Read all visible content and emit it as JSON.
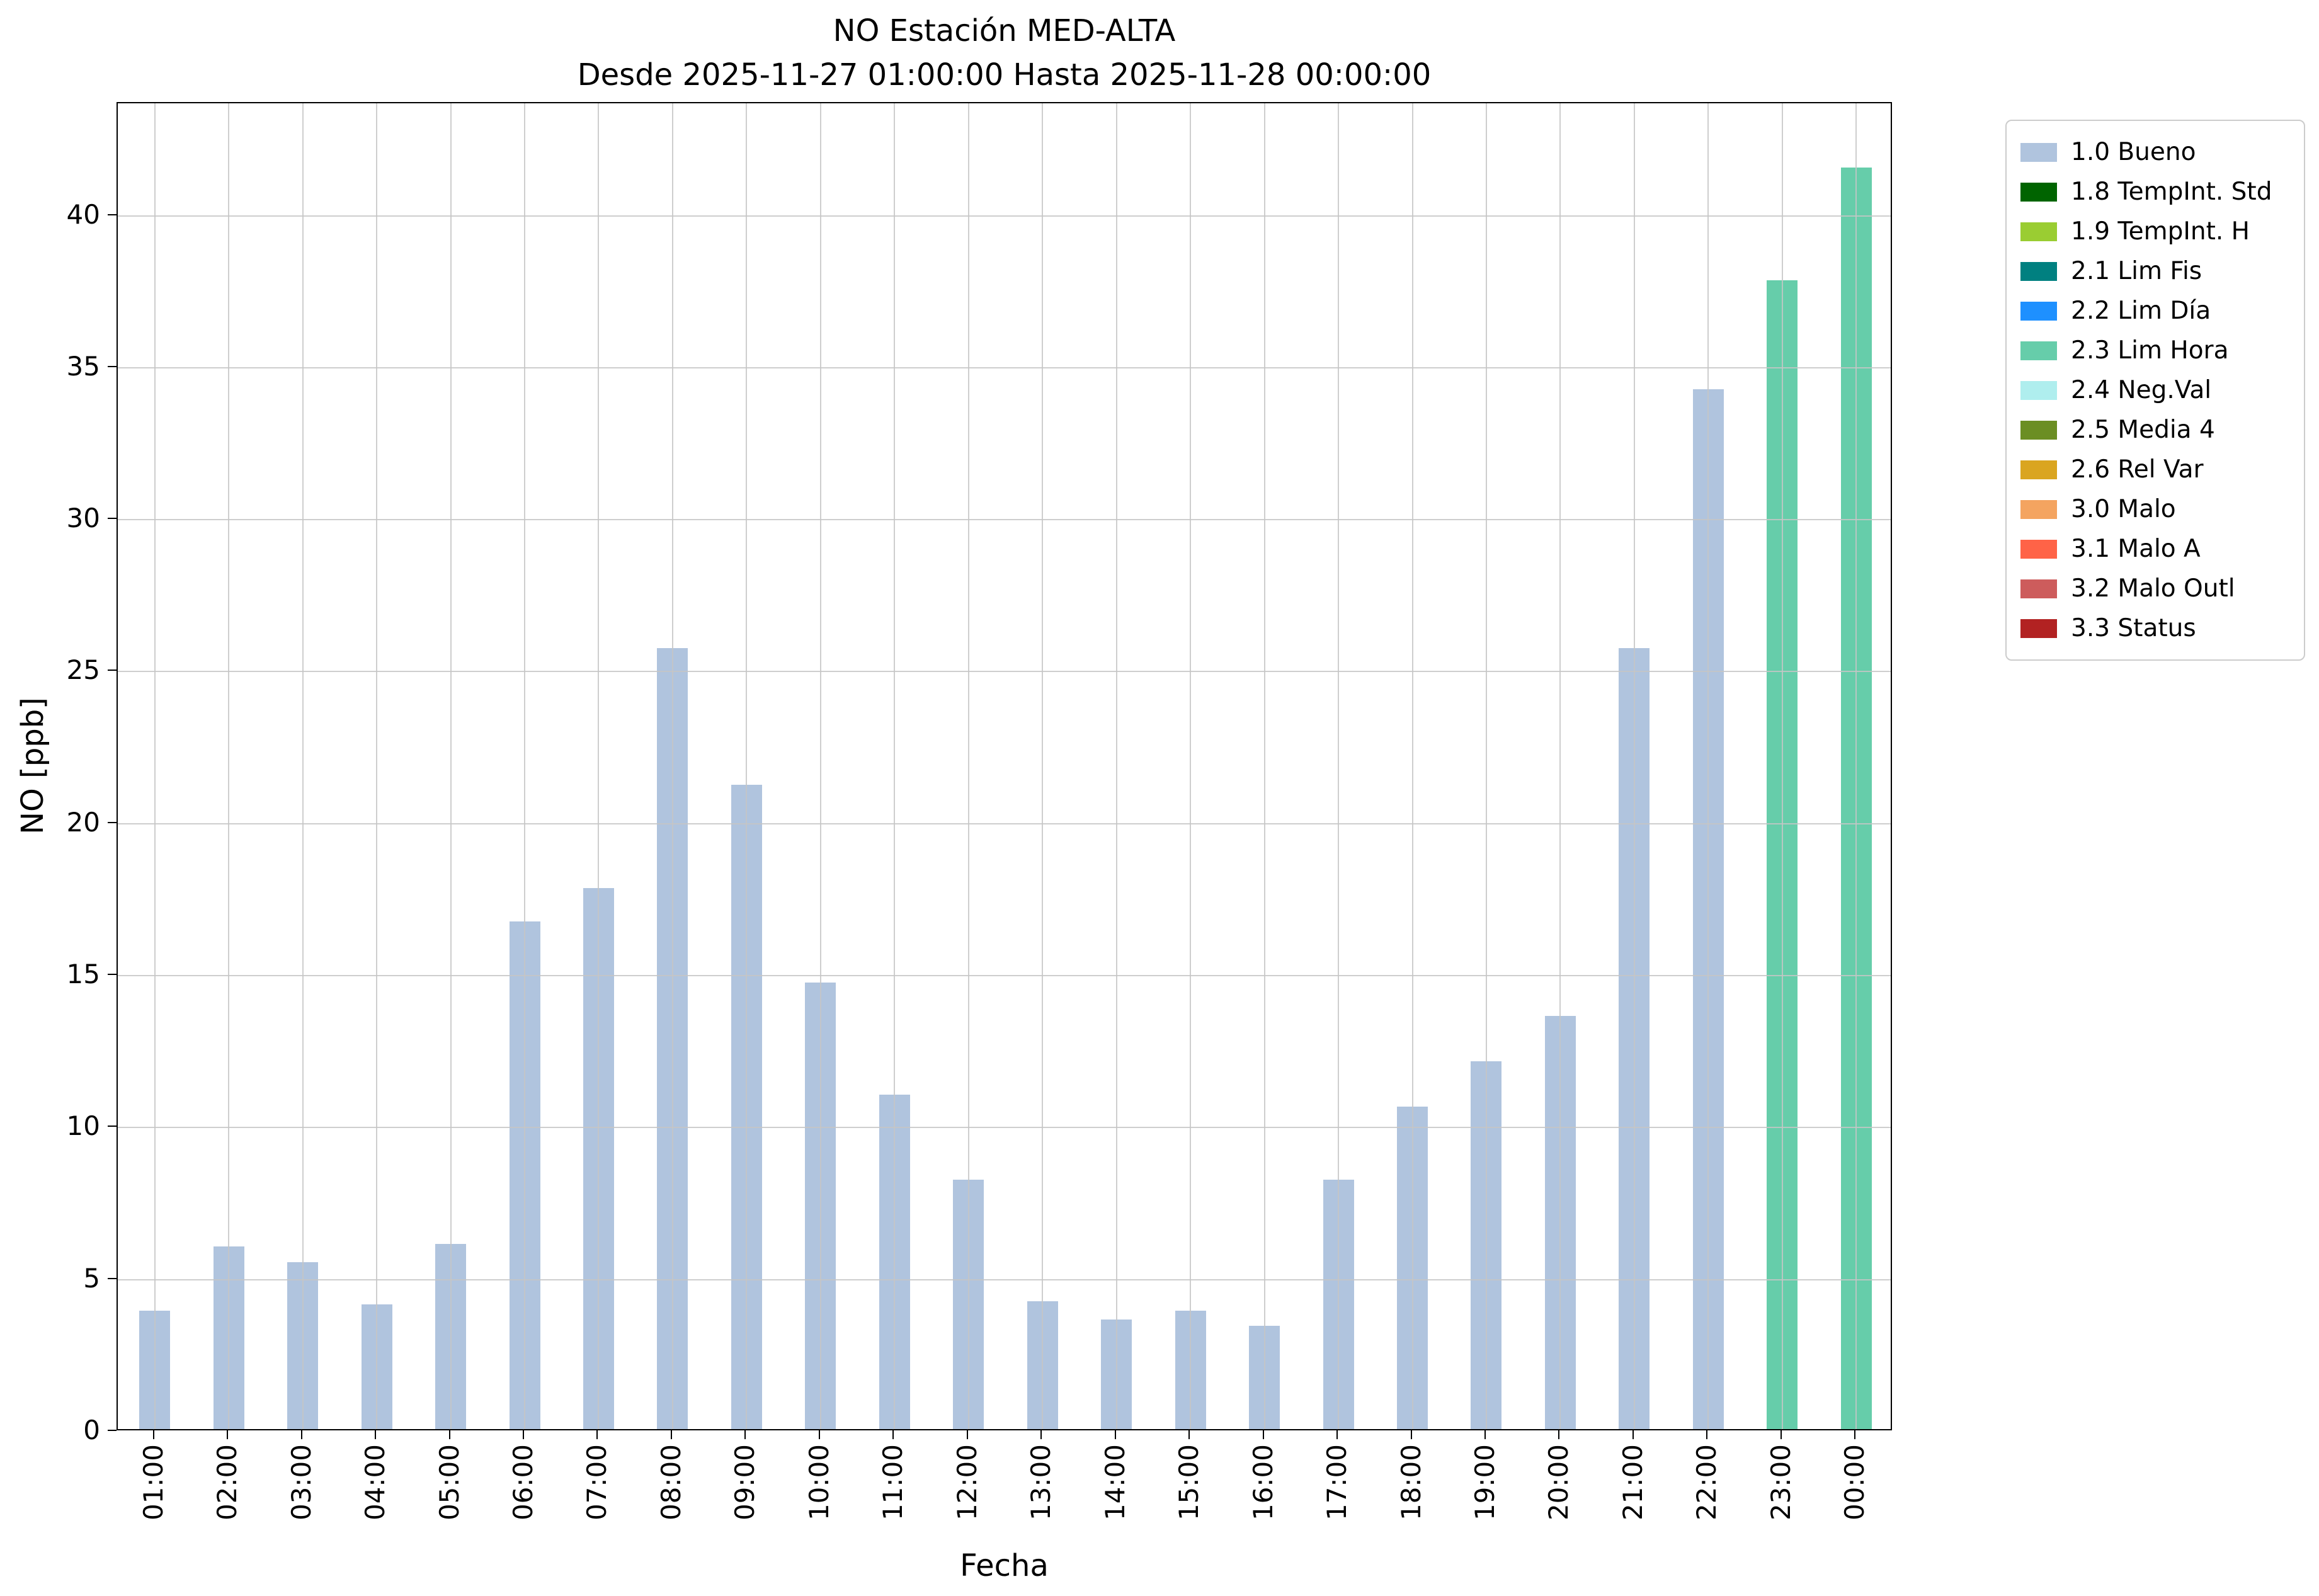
{
  "chart_data": {
    "type": "bar",
    "title": "NO Estación MED-ALTA",
    "subtitle": "Desde 2025-11-27 01:00:00 Hasta 2025-11-28 00:00:00",
    "xlabel": "Fecha",
    "ylabel": "NO [ppb]",
    "ylim": [
      0,
      43.7
    ],
    "yticks": [
      0,
      5,
      10,
      15,
      20,
      25,
      30,
      35,
      40
    ],
    "grid": true,
    "categories": [
      "01:00",
      "02:00",
      "03:00",
      "04:00",
      "05:00",
      "06:00",
      "07:00",
      "08:00",
      "09:00",
      "10:00",
      "11:00",
      "12:00",
      "13:00",
      "14:00",
      "15:00",
      "16:00",
      "17:00",
      "18:00",
      "19:00",
      "20:00",
      "21:00",
      "22:00",
      "23:00",
      "00:00"
    ],
    "values": [
      3.9,
      6.0,
      5.5,
      4.1,
      6.1,
      16.7,
      17.8,
      25.7,
      21.2,
      14.7,
      11.0,
      8.2,
      4.2,
      3.6,
      3.9,
      3.4,
      8.2,
      10.6,
      12.1,
      13.6,
      25.7,
      34.2,
      37.8,
      41.5
    ],
    "statuses": [
      "bueno",
      "bueno",
      "bueno",
      "bueno",
      "bueno",
      "bueno",
      "bueno",
      "bueno",
      "bueno",
      "bueno",
      "bueno",
      "bueno",
      "bueno",
      "bueno",
      "bueno",
      "bueno",
      "bueno",
      "bueno",
      "bueno",
      "bueno",
      "bueno",
      "bueno",
      "lim_hora",
      "lim_hora"
    ],
    "status_colors": {
      "bueno": "#b0c4de",
      "lim_hora": "#66cdaa"
    },
    "legend_position": "upper right outside",
    "legend": [
      {
        "label": "1.0 Bueno",
        "color": "#b0c4de"
      },
      {
        "label": "1.8 TempInt. Std",
        "color": "#006400"
      },
      {
        "label": "1.9 TempInt. H",
        "color": "#9acd32"
      },
      {
        "label": "2.1 Lim Fis",
        "color": "#008080"
      },
      {
        "label": "2.2 Lim Día",
        "color": "#1e90ff"
      },
      {
        "label": "2.3 Lim Hora",
        "color": "#66cdaa"
      },
      {
        "label": "2.4 Neg.Val",
        "color": "#afeeee"
      },
      {
        "label": "2.5 Media 4",
        "color": "#6b8e23"
      },
      {
        "label": "2.6 Rel Var",
        "color": "#daa520"
      },
      {
        "label": "3.0 Malo",
        "color": "#f4a460"
      },
      {
        "label": "3.1 Malo A",
        "color": "#ff6347"
      },
      {
        "label": "3.2 Malo Outl",
        "color": "#cd5c5c"
      },
      {
        "label": "3.3 Status",
        "color": "#b22222"
      }
    ]
  }
}
